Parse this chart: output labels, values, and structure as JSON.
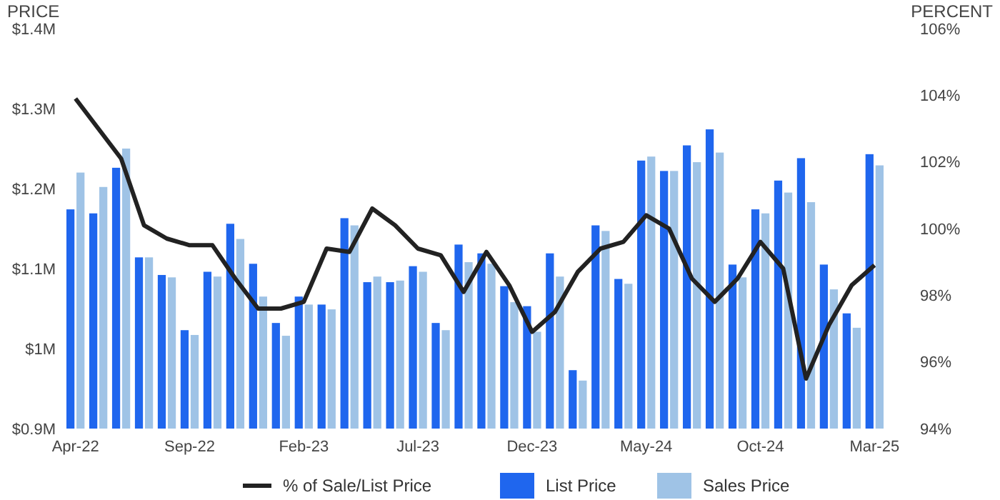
{
  "chart_data": {
    "type": "bar",
    "ylabel": "PRICE",
    "y2label": "PERCENT",
    "categories": [
      "Apr-22",
      null,
      null,
      null,
      null,
      "Sep-22",
      null,
      null,
      null,
      null,
      "Feb-23",
      null,
      null,
      null,
      null,
      "Jul-23",
      null,
      null,
      null,
      null,
      "Dec-23",
      null,
      null,
      null,
      null,
      "May-24",
      null,
      null,
      null,
      null,
      "Oct-24",
      null,
      null,
      null,
      null,
      "Mar-25"
    ],
    "series": [
      {
        "name": "% of Sale/List Price",
        "type": "line",
        "axis": "y2",
        "color": "#222222",
        "values": [
          103.9,
          103.0,
          102.1,
          100.1,
          99.7,
          99.5,
          99.5,
          98.5,
          97.6,
          97.6,
          97.8,
          99.4,
          99.3,
          100.6,
          100.1,
          99.4,
          99.2,
          98.1,
          99.3,
          98.3,
          96.9,
          97.5,
          98.7,
          99.4,
          99.6,
          100.4,
          100.0,
          98.5,
          97.8,
          98.5,
          99.6,
          98.8,
          95.5,
          97.1,
          98.3,
          98.9
        ]
      },
      {
        "name": "List Price",
        "color": "#1f66ee",
        "values": [
          1.174,
          1.169,
          1.226,
          1.114,
          1.092,
          1.023,
          1.096,
          1.156,
          1.106,
          1.032,
          1.065,
          1.055,
          1.163,
          1.083,
          1.083,
          1.103,
          1.032,
          1.13,
          1.119,
          1.078,
          1.053,
          1.119,
          0.973,
          1.154,
          1.087,
          1.235,
          1.222,
          1.254,
          1.274,
          1.105,
          1.174,
          1.21,
          1.238,
          1.105,
          1.044,
          1.243
        ]
      },
      {
        "name": "Sales Price",
        "color": "#9fc3e6",
        "values": [
          1.22,
          1.202,
          1.25,
          1.114,
          1.089,
          1.017,
          1.09,
          1.137,
          1.065,
          1.016,
          1.055,
          1.049,
          1.154,
          1.09,
          1.085,
          1.096,
          1.023,
          1.108,
          1.106,
          1.058,
          1.021,
          1.09,
          0.96,
          1.147,
          1.081,
          1.24,
          1.222,
          1.233,
          1.245,
          1.089,
          1.169,
          1.195,
          1.183,
          1.074,
          1.026,
          1.229
        ]
      }
    ],
    "ylim": [
      0.9,
      1.4
    ],
    "yticks": [
      {
        "value": 0.9,
        "label": "$0.9M"
      },
      {
        "value": 1.0,
        "label": "$1M"
      },
      {
        "value": 1.1,
        "label": "$1.1M"
      },
      {
        "value": 1.2,
        "label": "$1.2M"
      },
      {
        "value": 1.3,
        "label": "$1.3M"
      },
      {
        "value": 1.4,
        "label": "$1.4M"
      }
    ],
    "y2lim": [
      94,
      106
    ],
    "y2ticks": [
      {
        "value": 94,
        "label": "94%"
      },
      {
        "value": 96,
        "label": "96%"
      },
      {
        "value": 98,
        "label": "98%"
      },
      {
        "value": 100,
        "label": "100%"
      },
      {
        "value": 102,
        "label": "102%"
      },
      {
        "value": 104,
        "label": "104%"
      },
      {
        "value": 106,
        "label": "106%"
      }
    ],
    "legend": "bottom",
    "grid": false
  }
}
